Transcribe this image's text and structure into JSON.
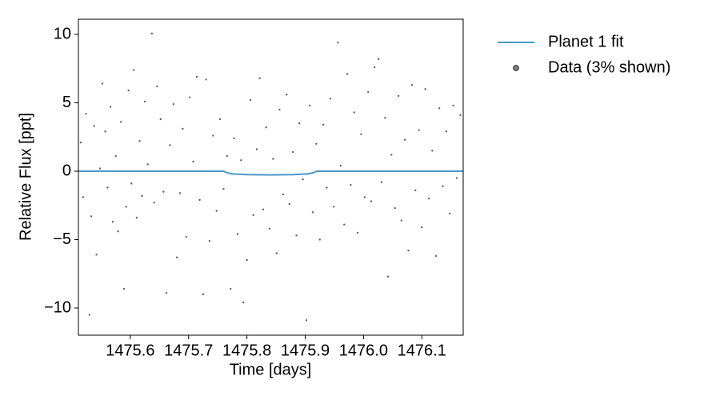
{
  "chart_data": {
    "type": "scatter",
    "xlabel": "Time [days]",
    "ylabel": "Relative Flux [ppt]",
    "xlim": [
      1475.511,
      1476.171
    ],
    "ylim": [
      -11.99,
      11.11
    ],
    "xticks": [
      1475.6,
      1475.7,
      1475.8,
      1475.9,
      {
        "value": 1476.0,
        "label": "1476.0"
      },
      1476.1
    ],
    "yticks": [
      {
        "value": -10,
        "label": "−10"
      },
      {
        "value": -5,
        "label": "−5"
      },
      0,
      5,
      10
    ],
    "legend": "outside-upper-right",
    "series": [
      {
        "name": "Planet 1 fit",
        "type": "line",
        "color": "#4a97c9",
        "x": [
          1475.511,
          1475.76,
          1475.765,
          1475.775,
          1475.8,
          1475.84,
          1475.88,
          1475.905,
          1475.915,
          1475.92,
          1476.171
        ],
        "values": [
          0,
          0,
          -0.1,
          -0.2,
          -0.25,
          -0.27,
          -0.25,
          -0.2,
          -0.1,
          0,
          0
        ]
      },
      {
        "name": "Data (3% shown)",
        "type": "scatter",
        "color": "#444444",
        "x": [
          1475.515,
          1475.519,
          1475.524,
          1475.53,
          1475.533,
          1475.538,
          1475.542,
          1475.548,
          1475.552,
          1475.557,
          1475.561,
          1475.566,
          1475.57,
          1475.575,
          1475.579,
          1475.584,
          1475.589,
          1475.593,
          1475.597,
          1475.602,
          1475.606,
          1475.611,
          1475.616,
          1475.62,
          1475.625,
          1475.63,
          1475.637,
          1475.641,
          1475.646,
          1475.652,
          1475.657,
          1475.662,
          1475.668,
          1475.674,
          1475.68,
          1475.685,
          1475.69,
          1475.696,
          1475.702,
          1475.708,
          1475.714,
          1475.719,
          1475.725,
          1475.73,
          1475.736,
          1475.742,
          1475.748,
          1475.754,
          1475.76,
          1475.766,
          1475.772,
          1475.778,
          1475.784,
          1475.79,
          1475.794,
          1475.8,
          1475.806,
          1475.811,
          1475.817,
          1475.822,
          1475.828,
          1475.833,
          1475.839,
          1475.845,
          1475.851,
          1475.856,
          1475.862,
          1475.868,
          1475.873,
          1475.879,
          1475.885,
          1475.89,
          1475.896,
          1475.902,
          1475.908,
          1475.913,
          1475.919,
          1475.925,
          1475.931,
          1475.937,
          1475.943,
          1475.949,
          1475.956,
          1475.961,
          1475.967,
          1475.972,
          1475.978,
          1475.984,
          1475.99,
          1475.996,
          1476.002,
          1476.008,
          1476.013,
          1476.019,
          1476.026,
          1476.031,
          1476.037,
          1476.042,
          1476.048,
          1476.054,
          1476.06,
          1476.065,
          1476.071,
          1476.077,
          1476.083,
          1476.089,
          1476.095,
          1476.1,
          1476.106,
          1476.112,
          1476.118,
          1476.124,
          1476.13,
          1476.136,
          1476.142,
          1476.148,
          1476.154,
          1476.16,
          1476.166
        ],
        "values": [
          2.1,
          -1.9,
          4.2,
          -10.5,
          -3.3,
          3.3,
          -6.1,
          0.2,
          6.4,
          2.9,
          -1.2,
          4.7,
          -3.7,
          1.1,
          -4.4,
          3.6,
          -8.6,
          -2.6,
          5.9,
          -0.9,
          7.4,
          -3.4,
          2.2,
          -1.8,
          5.1,
          0.5,
          10.06,
          -2.3,
          6.2,
          3.8,
          -1.5,
          -8.9,
          1.9,
          4.9,
          -6.3,
          -1.6,
          3.1,
          -4.8,
          5.4,
          0.7,
          6.9,
          -2.1,
          -9.0,
          6.7,
          -5.1,
          2.6,
          -2.9,
          3.8,
          -1.3,
          1.1,
          -8.6,
          2.4,
          -4.6,
          0.8,
          -9.6,
          -6.5,
          5.2,
          -3.2,
          1.6,
          6.8,
          -2.8,
          3.2,
          -4.2,
          0.9,
          -6.0,
          4.5,
          -1.7,
          5.6,
          -2.4,
          1.4,
          -4.7,
          3.5,
          -0.6,
          -10.9,
          4.8,
          -3.0,
          2.0,
          -5.0,
          3.4,
          -1.2,
          5.3,
          -2.6,
          9.4,
          0.4,
          -3.9,
          7.1,
          -1.0,
          4.3,
          -4.5,
          2.7,
          -1.9,
          5.8,
          -2.2,
          7.6,
          8.2,
          -0.8,
          3.9,
          -7.7,
          1.2,
          -2.7,
          5.5,
          -3.6,
          2.3,
          -5.8,
          6.3,
          -1.4,
          3.0,
          -4.1,
          6.0,
          -2.0,
          1.5,
          -6.2,
          4.6,
          -1.1,
          2.9,
          -3.1,
          4.8,
          -0.5,
          4.1
        ]
      }
    ]
  }
}
